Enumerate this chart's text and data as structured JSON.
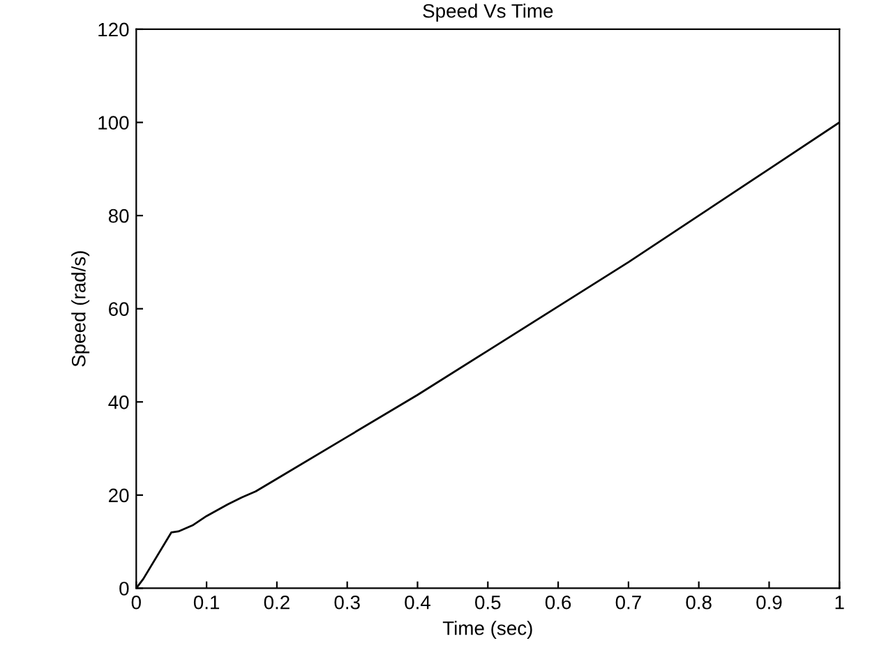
{
  "chart_data": {
    "type": "line",
    "title": "Speed Vs Time",
    "xlabel": "Time (sec)",
    "ylabel": "Speed (rad/s)",
    "x": [
      0,
      0.01,
      0.05,
      0.06,
      0.08,
      0.1,
      0.13,
      0.15,
      0.17,
      0.2,
      0.3,
      0.4,
      0.5,
      0.6,
      0.7,
      0.8,
      0.9,
      1.0
    ],
    "series": [
      {
        "color": "#000000",
        "values": [
          0,
          2,
          12,
          12.2,
          13.5,
          15.5,
          18,
          19.5,
          20.8,
          23.5,
          32.5,
          41.5,
          51,
          60.5,
          70,
          80,
          90,
          100
        ]
      }
    ],
    "xlim": [
      0,
      1
    ],
    "ylim": [
      0,
      120
    ],
    "xticks": [
      0,
      0.1,
      0.2,
      0.3,
      0.4,
      0.5,
      0.6,
      0.7,
      0.8,
      0.9,
      1
    ],
    "yticks": [
      0,
      20,
      40,
      60,
      80,
      100,
      120
    ],
    "grid": false,
    "marker": "none",
    "line_style": "solid"
  }
}
